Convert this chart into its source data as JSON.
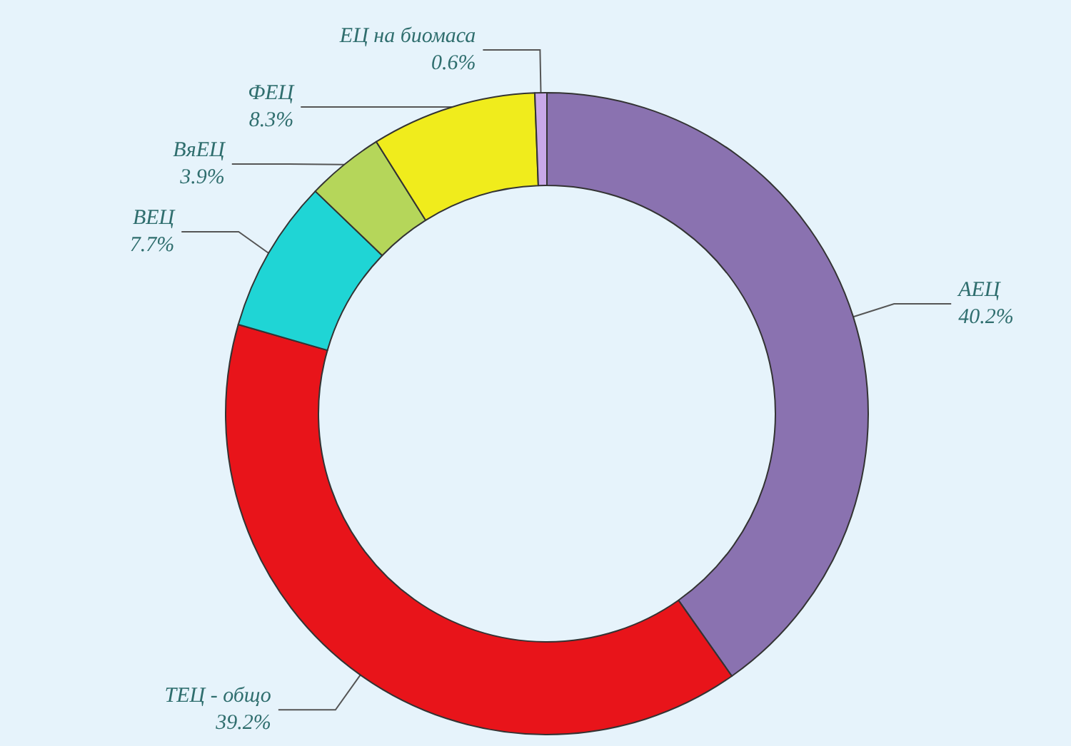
{
  "chart_data": {
    "type": "donut",
    "categories": [
      "АЕЦ",
      "ТЕЦ - общо",
      "ВЕЦ",
      "ВяЕЦ",
      "ФЕЦ",
      "ЕЦ на биомаса"
    ],
    "values": [
      40.2,
      39.2,
      7.7,
      3.9,
      8.3,
      0.6
    ],
    "value_labels": [
      "40.2%",
      "39.2%",
      "7.7%",
      "3.9%",
      "8.3%",
      "0.6%"
    ],
    "colors": [
      "#8a72b0",
      "#e8141a",
      "#1fd5d5",
      "#b5d65a",
      "#f0ec1c",
      "#c8a8e8"
    ],
    "legend": false
  }
}
